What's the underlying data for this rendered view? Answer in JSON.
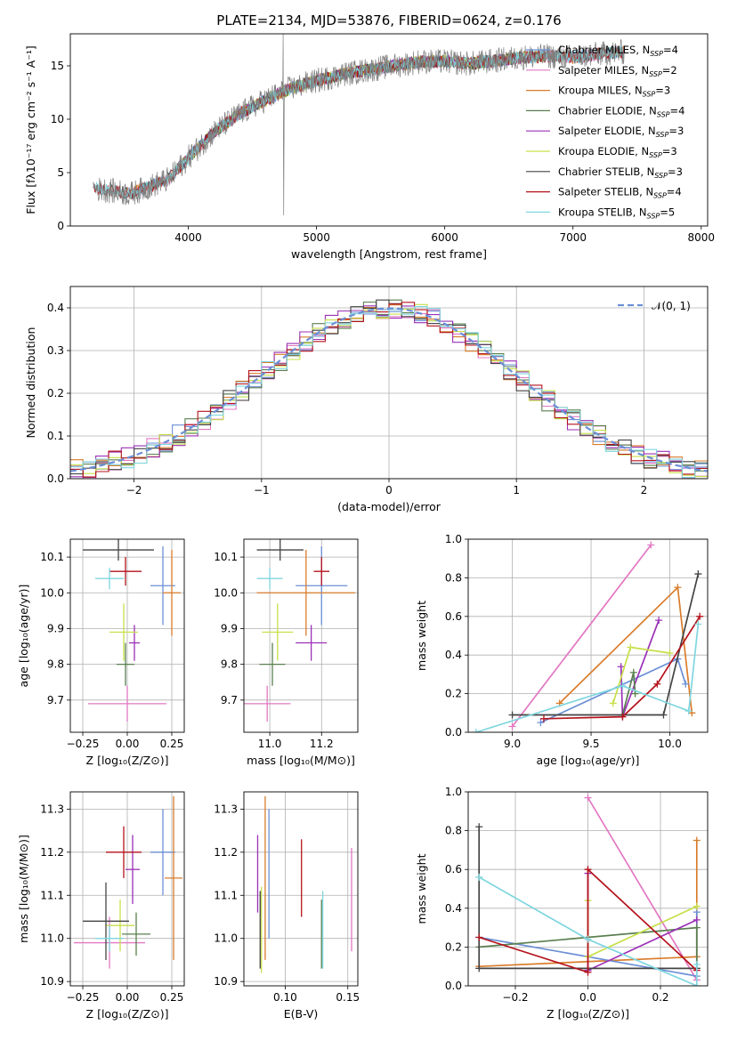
{
  "figure": {
    "title": "PLATE=2134, MJD=53876, FIBERID=0624, z=0.176"
  },
  "chart_data": [
    {
      "type": "line",
      "panel": "spectrum",
      "xlabel": "wavelength [Angstrom, rest frame]",
      "ylabel": "Flux [fλ10⁻¹⁷ erg cm⁻² s⁻¹ A⁻¹]",
      "xlim": [
        3080,
        8050
      ],
      "ylim": [
        0,
        18
      ],
      "xticks": [
        4000,
        5000,
        6000,
        7000,
        8000
      ],
      "yticks": [
        0,
        5,
        10,
        15
      ],
      "legend": "top-right",
      "data_envelope": {
        "x": [
          3260,
          3400,
          3550,
          3700,
          3850,
          4000,
          4200,
          4400,
          4600,
          4800,
          5000,
          5200,
          5400,
          5600,
          5800,
          6000,
          6200,
          6400,
          6600,
          6800,
          7000,
          7200,
          7400
        ],
        "y": [
          3.5,
          3.3,
          3.0,
          3.7,
          4.4,
          6.4,
          8.8,
          10.5,
          11.8,
          12.9,
          13.6,
          14.2,
          14.6,
          15.0,
          15.4,
          15.4,
          15.2,
          15.5,
          15.8,
          15.9,
          15.8,
          16.1,
          16.3
        ]
      },
      "series": [
        {
          "name": "Chabrier MILES, N_SSP=4",
          "color": "#6b8fd6",
          "x_range": [
            3520,
            7420
          ]
        },
        {
          "name": "Salpeter MILES, N_SSP=2",
          "color": "#e377c2",
          "x_range": [
            3520,
            7420
          ]
        },
        {
          "name": "Kroupa MILES, N_SSP=3",
          "color": "#d97c2b",
          "x_range": [
            3520,
            7420
          ]
        },
        {
          "name": "Chabrier ELODIE, N_SSP=4",
          "color": "#5a7f4f",
          "x_range": [
            3920,
            6800
          ]
        },
        {
          "name": "Salpeter ELODIE, N_SSP=3",
          "color": "#9b30b6",
          "x_range": [
            3920,
            6800
          ]
        },
        {
          "name": "Kroupa ELODIE, N_SSP=3",
          "color": "#c6e04a",
          "x_range": [
            3920,
            6800
          ]
        },
        {
          "name": "Chabrier STELIB, N_SSP=3",
          "color": "#444444",
          "x_range": [
            3260,
            7420
          ]
        },
        {
          "name": "Salpeter STELIB, N_SSP=4",
          "color": "#b5121b",
          "x_range": [
            3260,
            7420
          ]
        },
        {
          "name": "Kroupa STELIB, N_SSP=5",
          "color": "#7fd6e0",
          "x_range": [
            3260,
            7420
          ]
        }
      ],
      "legend_entries": [
        {
          "base": "Chabrier MILES, N",
          "sub": "SSP",
          "tail": "=4"
        },
        {
          "base": "Salpeter MILES, N",
          "sub": "SSP",
          "tail": "=2"
        },
        {
          "base": "Kroupa MILES, N",
          "sub": "SSP",
          "tail": "=3"
        },
        {
          "base": "Chabrier ELODIE, N",
          "sub": "SSP",
          "tail": "=4"
        },
        {
          "base": "Salpeter ELODIE, N",
          "sub": "SSP",
          "tail": "=3"
        },
        {
          "base": "Kroupa ELODIE, N",
          "sub": "SSP",
          "tail": "=3"
        },
        {
          "base": "Chabrier STELIB, N",
          "sub": "SSP",
          "tail": "=3"
        },
        {
          "base": "Salpeter STELIB, N",
          "sub": "SSP",
          "tail": "=4"
        },
        {
          "base": "Kroupa STELIB, N",
          "sub": "SSP",
          "tail": "=5"
        }
      ]
    },
    {
      "type": "line",
      "panel": "residual-histogram",
      "xlabel": "(data-model)/error",
      "ylabel": "Normed distribution",
      "xlim": [
        -2.5,
        2.5
      ],
      "ylim": [
        0,
        0.45
      ],
      "xticks": [
        -2,
        -1,
        0,
        1,
        2
      ],
      "yticks": [
        0.0,
        0.1,
        0.2,
        0.3,
        0.4
      ],
      "grid": true,
      "legend": "top-right",
      "legend_label": "𝒩(0, 1)",
      "bin_width": 0.1,
      "series_colors": [
        "#6b8fd6",
        "#e377c2",
        "#d97c2b",
        "#5a7f4f",
        "#9b30b6",
        "#c6e04a",
        "#444444",
        "#b5121b",
        "#7fd6e0"
      ]
    },
    {
      "type": "scatter",
      "panel": "age-vs-Z",
      "xlabel": "Z [log₁₀(Z/Z⊙)]",
      "ylabel": "age  [log₁₀(age/yr)]",
      "xlim": [
        -0.32,
        0.32
      ],
      "ylim": [
        9.61,
        10.15
      ],
      "xticks": [
        -0.25,
        0.0,
        0.25
      ],
      "yticks": [
        9.7,
        9.8,
        9.9,
        10.0,
        10.1
      ],
      "grid": true,
      "points": [
        {
          "color": "#6b8fd6",
          "x": 0.2,
          "xerr": 0.07,
          "y": 10.02,
          "yerr": 0.11
        },
        {
          "color": "#e377c2",
          "x": 0.0,
          "xerr": 0.22,
          "y": 9.69,
          "yerr": 0.05
        },
        {
          "color": "#d97c2b",
          "x": 0.25,
          "xerr": 0.05,
          "y": 10.0,
          "yerr": 0.12
        },
        {
          "color": "#5a7f4f",
          "x": -0.01,
          "xerr": 0.05,
          "y": 9.8,
          "yerr": 0.06
        },
        {
          "color": "#9b30b6",
          "x": 0.04,
          "xerr": 0.03,
          "y": 9.86,
          "yerr": 0.05
        },
        {
          "color": "#c6e04a",
          "x": -0.02,
          "xerr": 0.08,
          "y": 9.89,
          "yerr": 0.08
        },
        {
          "color": "#444444",
          "x": -0.05,
          "xerr": 0.2,
          "y": 10.12,
          "yerr": 0.03
        },
        {
          "color": "#b5121b",
          "x": -0.01,
          "xerr": 0.09,
          "y": 10.06,
          "yerr": 0.04
        },
        {
          "color": "#7fd6e0",
          "x": -0.1,
          "xerr": 0.08,
          "y": 10.04,
          "yerr": 0.03
        }
      ]
    },
    {
      "type": "scatter",
      "panel": "age-vs-mass",
      "xlabel": "mass [log₁₀(M/M⊙)]",
      "ylabel": "",
      "xlim": [
        10.9,
        11.34
      ],
      "ylim": [
        9.61,
        10.15
      ],
      "xticks": [
        11.0,
        11.2
      ],
      "yticks": [
        9.7,
        9.8,
        9.9,
        10.0,
        10.1
      ],
      "grid": true,
      "points": [
        {
          "color": "#6b8fd6",
          "x": 11.2,
          "xerr": 0.1,
          "y": 10.02,
          "yerr": 0.11
        },
        {
          "color": "#e377c2",
          "x": 10.99,
          "xerr": 0.09,
          "y": 9.69,
          "yerr": 0.05
        },
        {
          "color": "#d97c2b",
          "x": 11.14,
          "xerr": 0.19,
          "y": 10.0,
          "yerr": 0.12
        },
        {
          "color": "#5a7f4f",
          "x": 11.01,
          "xerr": 0.05,
          "y": 9.8,
          "yerr": 0.06
        },
        {
          "color": "#9b30b6",
          "x": 11.16,
          "xerr": 0.06,
          "y": 9.86,
          "yerr": 0.05
        },
        {
          "color": "#c6e04a",
          "x": 11.03,
          "xerr": 0.06,
          "y": 9.89,
          "yerr": 0.08
        },
        {
          "color": "#444444",
          "x": 11.04,
          "xerr": 0.09,
          "y": 10.12,
          "yerr": 0.03
        },
        {
          "color": "#b5121b",
          "x": 11.2,
          "xerr": 0.03,
          "y": 10.06,
          "yerr": 0.04
        },
        {
          "color": "#7fd6e0",
          "x": 11.0,
          "xerr": 0.05,
          "y": 10.04,
          "yerr": 0.03
        }
      ]
    },
    {
      "type": "line",
      "panel": "mass-weight-vs-age",
      "xlabel": "age  [log₁₀(age/yr)]",
      "ylabel": "mass weight",
      "xlim": [
        8.72,
        10.24
      ],
      "ylim": [
        0,
        1.0
      ],
      "xticks": [
        9.0,
        9.5,
        10.0
      ],
      "yticks": [
        0.0,
        0.2,
        0.4,
        0.6,
        0.8,
        1.0
      ],
      "grid": true,
      "series": [
        {
          "color": "#e377c2",
          "x": [
            9.0,
            9.88
          ],
          "y": [
            0.03,
            0.97
          ]
        },
        {
          "color": "#d97c2b",
          "x": [
            9.3,
            10.05,
            10.14
          ],
          "y": [
            0.15,
            0.75,
            0.1
          ]
        },
        {
          "color": "#6b8fd6",
          "x": [
            9.18,
            10.05,
            10.1
          ],
          "y": [
            0.05,
            0.38,
            0.25
          ]
        },
        {
          "color": "#9b30b6",
          "x": [
            9.69,
            9.7,
            9.93
          ],
          "y": [
            0.34,
            0.08,
            0.58
          ]
        },
        {
          "color": "#c6e04a",
          "x": [
            9.64,
            9.75,
            10.0
          ],
          "y": [
            0.15,
            0.44,
            0.41
          ]
        },
        {
          "color": "#5a7f4f",
          "x": [
            9.7,
            9.77,
            9.78
          ],
          "y": [
            0.09,
            0.31,
            0.2
          ]
        },
        {
          "color": "#444444",
          "x": [
            9.0,
            9.7,
            9.96,
            10.18
          ],
          "y": [
            0.09,
            0.09,
            0.09,
            0.82
          ]
        },
        {
          "color": "#b5121b",
          "x": [
            9.2,
            9.7,
            9.92,
            10.19
          ],
          "y": [
            0.07,
            0.08,
            0.25,
            0.6
          ]
        },
        {
          "color": "#7fd6e0",
          "x": [
            8.77,
            9.7,
            10.12,
            10.18
          ],
          "y": [
            0.0,
            0.24,
            0.11,
            0.56
          ]
        }
      ]
    },
    {
      "type": "scatter",
      "panel": "mass-vs-Z",
      "xlabel": "Z [log₁₀(Z/Z⊙)]",
      "ylabel": "mass [log₁₀(M/M⊙)]",
      "xlim": [
        -0.32,
        0.32
      ],
      "ylim": [
        10.89,
        11.34
      ],
      "xticks": [
        -0.25,
        0.0,
        0.25
      ],
      "yticks": [
        10.9,
        11.0,
        11.1,
        11.2,
        11.3
      ],
      "grid": true,
      "points": [
        {
          "color": "#6b8fd6",
          "x": 0.2,
          "xerr": 0.07,
          "y": 11.2,
          "yerr": 0.1
        },
        {
          "color": "#e377c2",
          "x": -0.1,
          "xerr": 0.2,
          "y": 10.99,
          "yerr": 0.06
        },
        {
          "color": "#d97c2b",
          "x": 0.26,
          "xerr": 0.05,
          "y": 11.14,
          "yerr": 0.19
        },
        {
          "color": "#5a7f4f",
          "x": 0.05,
          "xerr": 0.08,
          "y": 11.01,
          "yerr": 0.05
        },
        {
          "color": "#9b30b6",
          "x": 0.03,
          "xerr": 0.04,
          "y": 11.16,
          "yerr": 0.08
        },
        {
          "color": "#c6e04a",
          "x": -0.04,
          "xerr": 0.08,
          "y": 11.03,
          "yerr": 0.06
        },
        {
          "color": "#444444",
          "x": -0.12,
          "xerr": 0.13,
          "y": 11.04,
          "yerr": 0.09
        },
        {
          "color": "#b5121b",
          "x": -0.02,
          "xerr": 0.1,
          "y": 11.2,
          "yerr": 0.06
        },
        {
          "color": "#7fd6e0",
          "x": -0.1,
          "xerr": 0.08,
          "y": 11.0,
          "yerr": 0.03
        }
      ]
    },
    {
      "type": "scatter",
      "panel": "mass-vs-EBV",
      "xlabel": "E(B-V)",
      "ylabel": "",
      "xlim": [
        0.067,
        0.158
      ],
      "ylim": [
        10.89,
        11.34
      ],
      "xticks": [
        0.1,
        0.15
      ],
      "yticks": [
        10.9,
        11.0,
        11.1,
        11.2,
        11.3
      ],
      "grid": true,
      "points": [
        {
          "color": "#6b8fd6",
          "x": 0.087,
          "y": 11.15,
          "yerr": 0.15
        },
        {
          "color": "#e377c2",
          "x": 0.153,
          "y": 11.09,
          "yerr": 0.12
        },
        {
          "color": "#d97c2b",
          "x": 0.084,
          "y": 11.14,
          "yerr": 0.19
        },
        {
          "color": "#5a7f4f",
          "x": 0.129,
          "y": 11.01,
          "yerr": 0.08
        },
        {
          "color": "#9b30b6",
          "x": 0.078,
          "y": 11.15,
          "yerr": 0.09
        },
        {
          "color": "#c6e04a",
          "x": 0.081,
          "y": 11.02,
          "yerr": 0.1
        },
        {
          "color": "#444444",
          "x": 0.08,
          "y": 11.02,
          "yerr": 0.09
        },
        {
          "color": "#b5121b",
          "x": 0.113,
          "y": 11.14,
          "yerr": 0.09
        },
        {
          "color": "#7fd6e0",
          "x": 0.13,
          "y": 11.02,
          "yerr": 0.09
        }
      ]
    },
    {
      "type": "line",
      "panel": "mass-weight-vs-Z",
      "xlabel": "Z [log₁₀(Z/Z⊙)]",
      "ylabel": "mass weight",
      "xlim": [
        -0.33,
        0.33
      ],
      "ylim": [
        0,
        1.0
      ],
      "xticks": [
        -0.2,
        0.0,
        0.2
      ],
      "yticks": [
        0.0,
        0.2,
        0.4,
        0.6,
        0.8,
        1.0
      ],
      "grid": true,
      "series": [
        {
          "color": "#e377c2",
          "x": [
            0.0,
            0.3
          ],
          "y": [
            0.97,
            0.03
          ]
        },
        {
          "color": "#d97c2b",
          "x": [
            -0.3,
            0.3,
            0.3
          ],
          "y": [
            0.1,
            0.15,
            0.75
          ]
        },
        {
          "color": "#6b8fd6",
          "x": [
            -0.3,
            0.3,
            0.3
          ],
          "y": [
            0.25,
            0.05,
            0.38
          ]
        },
        {
          "color": "#5a7f4f",
          "x": [
            -0.3,
            0.3,
            0.3
          ],
          "y": [
            0.2,
            0.3,
            0.09
          ]
        },
        {
          "color": "#9b30b6",
          "x": [
            0.0,
            0.0,
            0.3
          ],
          "y": [
            0.58,
            0.08,
            0.34
          ]
        },
        {
          "color": "#c6e04a",
          "x": [
            0.0,
            0.0,
            0.3
          ],
          "y": [
            0.44,
            0.15,
            0.41
          ]
        },
        {
          "color": "#444444",
          "x": [
            -0.3,
            -0.3,
            0.3
          ],
          "y": [
            0.82,
            0.09,
            0.09
          ]
        },
        {
          "color": "#b5121b",
          "x": [
            -0.3,
            0.0,
            0.0,
            0.3
          ],
          "y": [
            0.25,
            0.07,
            0.6,
            0.08
          ]
        },
        {
          "color": "#7fd6e0",
          "x": [
            -0.3,
            0.0,
            0.3,
            0.3
          ],
          "y": [
            0.56,
            0.24,
            0.0,
            0.11
          ]
        }
      ]
    }
  ]
}
